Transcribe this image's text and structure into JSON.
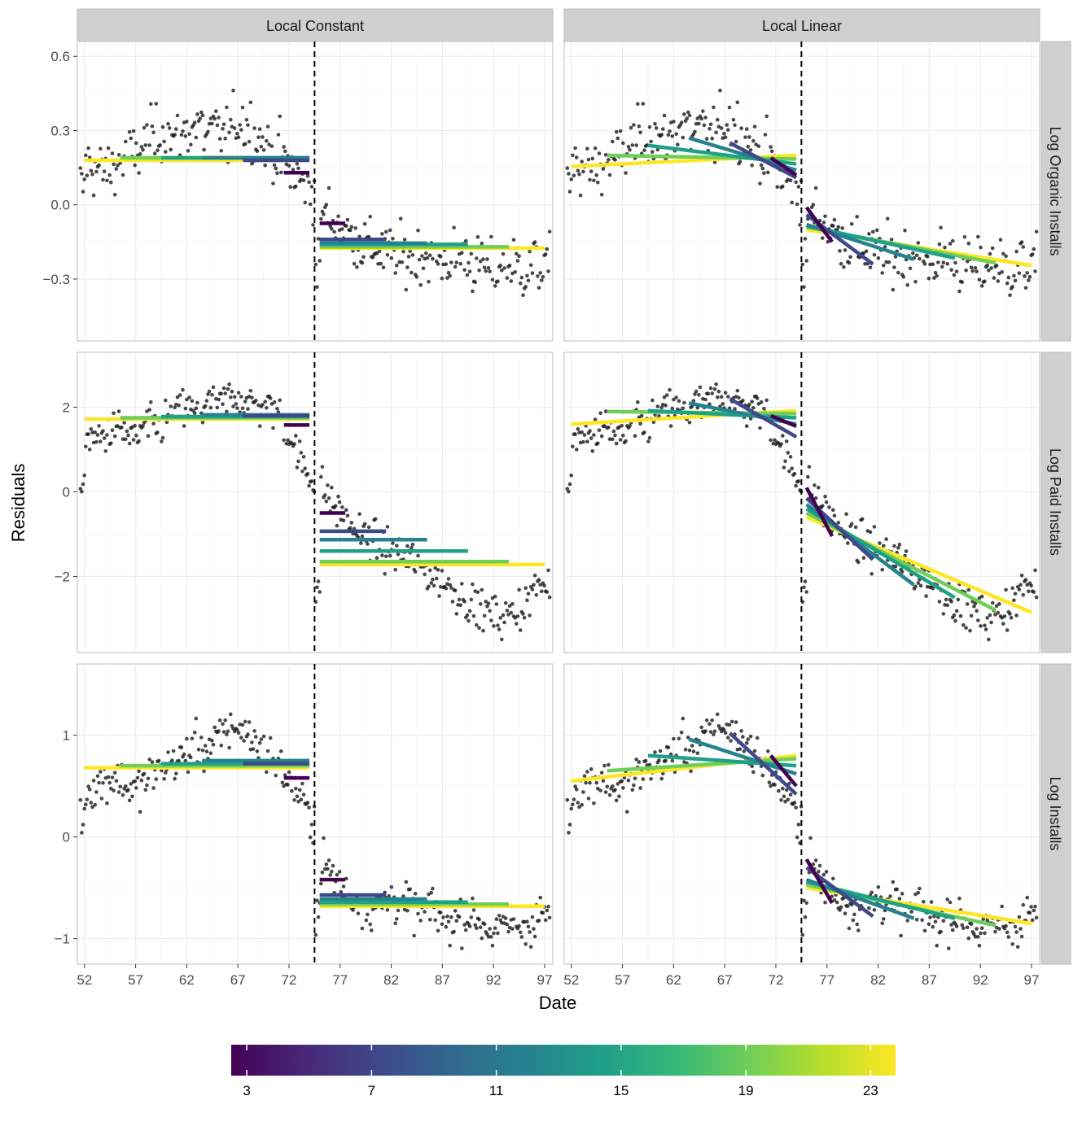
{
  "chart_data": {
    "type": "scatter",
    "xlabel": "Date",
    "ylabel": "Residuals",
    "columns": [
      "Local Constant",
      "Local Linear"
    ],
    "rows": [
      "Log Organic Installs",
      "Log Paid Installs",
      "Log Installs"
    ],
    "x_ticks": [
      52,
      57,
      62,
      67,
      72,
      77,
      82,
      87,
      92,
      97
    ],
    "xlim": [
      51.3,
      97.8
    ],
    "cutoff": 74.5,
    "colorbar": {
      "title": "",
      "ticks": [
        3,
        7,
        11,
        15,
        19,
        23
      ],
      "range": [
        2.5,
        23.8
      ],
      "stops": [
        "#440154",
        "#482878",
        "#3e4989",
        "#31688e",
        "#26828e",
        "#1f9e89",
        "#35b779",
        "#6ece58",
        "#b5de2b",
        "#fde725"
      ]
    },
    "bandwidth_colors": {
      "3": "#440154",
      "7": "#3e4989",
      "11": "#26828e",
      "15": "#1fa187",
      "19": "#6ece58",
      "23": "#fde725"
    },
    "panels": [
      {
        "row": "Log Organic Installs",
        "ylim": [
          -0.55,
          0.66
        ],
        "y_ticks": [
          -0.3,
          0.0,
          0.3,
          0.6
        ],
        "y_tick_labels": [
          "−0.3",
          "0.0",
          "0.3",
          "0.6"
        ],
        "pre_points": [
          [
            52,
            0.18
          ],
          [
            53,
            0.15
          ],
          [
            54,
            0.13
          ],
          [
            55,
            0.16
          ],
          [
            56,
            0.19
          ],
          [
            57,
            0.2
          ],
          [
            58,
            0.25
          ],
          [
            59,
            0.28
          ],
          [
            60,
            0.3
          ],
          [
            61,
            0.25
          ],
          [
            62,
            0.3
          ],
          [
            63,
            0.33
          ],
          [
            64,
            0.28
          ],
          [
            65,
            0.3
          ],
          [
            66,
            0.27
          ],
          [
            67,
            0.35
          ],
          [
            68,
            0.32
          ],
          [
            69,
            0.28
          ],
          [
            70,
            0.22
          ],
          [
            71,
            0.2
          ],
          [
            72,
            0.15
          ],
          [
            73,
            0.1
          ],
          [
            74,
            0.07
          ]
        ],
        "post_points": [
          [
            75,
            -0.02
          ],
          [
            76,
            -0.05
          ],
          [
            77,
            -0.08
          ],
          [
            78,
            -0.12
          ],
          [
            79,
            -0.15
          ],
          [
            80,
            -0.17
          ],
          [
            81,
            -0.19
          ],
          [
            82,
            -0.2
          ],
          [
            83,
            -0.22
          ],
          [
            84,
            -0.21
          ],
          [
            85,
            -0.2
          ],
          [
            86,
            -0.22
          ],
          [
            87,
            -0.23
          ],
          [
            88,
            -0.22
          ],
          [
            89,
            -0.2
          ],
          [
            90,
            -0.24
          ],
          [
            91,
            -0.25
          ],
          [
            92,
            -0.27
          ],
          [
            93,
            -0.23
          ],
          [
            94,
            -0.25
          ],
          [
            95,
            -0.27
          ],
          [
            96,
            -0.24
          ],
          [
            97,
            -0.26
          ]
        ],
        "spread": 0.1,
        "constant_fits": [
          {
            "bandwidth": 23,
            "pre": 0.18,
            "post": -0.175
          },
          {
            "bandwidth": 19,
            "pre": 0.19,
            "post": -0.17
          },
          {
            "bandwidth": 15,
            "pre": 0.19,
            "post": -0.16
          },
          {
            "bandwidth": 11,
            "pre": 0.19,
            "post": -0.155
          },
          {
            "bandwidth": 7,
            "pre": 0.18,
            "post": -0.14
          },
          {
            "bandwidth": 3,
            "pre": 0.13,
            "post": -0.075
          }
        ],
        "linear_fits": [
          {
            "bandwidth": 23,
            "pre_start": 0.155,
            "pre_end": 0.2,
            "post_start": -0.1,
            "post_end": -0.245
          },
          {
            "bandwidth": 19,
            "pre_start": 0.2,
            "pre_end": 0.185,
            "post_start": -0.09,
            "post_end": -0.235
          },
          {
            "bandwidth": 15,
            "pre_start": 0.24,
            "pre_end": 0.165,
            "post_start": -0.085,
            "post_end": -0.215
          },
          {
            "bandwidth": 11,
            "pre_start": 0.27,
            "pre_end": 0.14,
            "post_start": -0.08,
            "post_end": -0.22
          },
          {
            "bandwidth": 7,
            "pre_start": 0.25,
            "pre_end": 0.11,
            "post_start": -0.04,
            "post_end": -0.24
          },
          {
            "bandwidth": 3,
            "pre_start": 0.19,
            "pre_end": 0.12,
            "post_start": -0.01,
            "post_end": -0.15
          }
        ]
      },
      {
        "row": "Log Paid Installs",
        "ylim": [
          -3.8,
          3.3
        ],
        "y_ticks": [
          -2,
          0,
          2
        ],
        "y_tick_labels": [
          "−2",
          "0",
          "2"
        ],
        "pre_points": [
          [
            52,
            1.3
          ],
          [
            53,
            1.2
          ],
          [
            54,
            1.35
          ],
          [
            55,
            1.5
          ],
          [
            56,
            1.4
          ],
          [
            57,
            1.2
          ],
          [
            58,
            1.6
          ],
          [
            59,
            1.5
          ],
          [
            60,
            1.7
          ],
          [
            61,
            1.9
          ],
          [
            62,
            2.0
          ],
          [
            63,
            1.8
          ],
          [
            64,
            2.1
          ],
          [
            65,
            2.0
          ],
          [
            66,
            2.2
          ],
          [
            67,
            2.3
          ],
          [
            68,
            2.1
          ],
          [
            69,
            2.0
          ],
          [
            70,
            2.0
          ],
          [
            71,
            1.9
          ],
          [
            72,
            1.4
          ],
          [
            73,
            0.8
          ],
          [
            74,
            0.3
          ]
        ],
        "post_points": [
          [
            75,
            0.2
          ],
          [
            76,
            -0.2
          ],
          [
            77,
            -0.5
          ],
          [
            78,
            -0.8
          ],
          [
            79,
            -1.0
          ],
          [
            80,
            -1.2
          ],
          [
            81,
            -1.3
          ],
          [
            82,
            -1.4
          ],
          [
            83,
            -1.5
          ],
          [
            84,
            -1.6
          ],
          [
            85,
            -1.8
          ],
          [
            86,
            -2.0
          ],
          [
            87,
            -2.1
          ],
          [
            88,
            -2.3
          ],
          [
            89,
            -2.5
          ],
          [
            90,
            -2.7
          ],
          [
            91,
            -2.8
          ],
          [
            92,
            -2.9
          ],
          [
            93,
            -3.0
          ],
          [
            94,
            -2.8
          ],
          [
            95,
            -2.7
          ],
          [
            96,
            -2.3
          ],
          [
            97,
            -2.2
          ]
        ],
        "spread": 0.4,
        "constant_fits": [
          {
            "bandwidth": 23,
            "pre": 1.72,
            "post": -1.72
          },
          {
            "bandwidth": 19,
            "pre": 1.75,
            "post": -1.65
          },
          {
            "bandwidth": 15,
            "pre": 1.78,
            "post": -1.4
          },
          {
            "bandwidth": 11,
            "pre": 1.82,
            "post": -1.13
          },
          {
            "bandwidth": 7,
            "pre": 1.8,
            "post": -0.93
          },
          {
            "bandwidth": 3,
            "pre": 1.58,
            "post": -0.5
          }
        ],
        "linear_fits": [
          {
            "bandwidth": 23,
            "pre_start": 1.6,
            "pre_end": 1.92,
            "post_start": -0.6,
            "post_end": -2.85
          },
          {
            "bandwidth": 19,
            "pre_start": 1.9,
            "pre_end": 1.85,
            "post_start": -0.5,
            "post_end": -2.8
          },
          {
            "bandwidth": 15,
            "pre_start": 1.92,
            "pre_end": 1.75,
            "post_start": -0.4,
            "post_end": -2.5
          },
          {
            "bandwidth": 11,
            "pre_start": 2.1,
            "pre_end": 1.6,
            "post_start": -0.3,
            "post_end": -2.2
          },
          {
            "bandwidth": 7,
            "pre_start": 2.2,
            "pre_end": 1.3,
            "post_start": -0.15,
            "post_end": -1.6
          },
          {
            "bandwidth": 3,
            "pre_start": 1.8,
            "pre_end": 1.55,
            "post_start": 0.1,
            "post_end": -1.05
          }
        ]
      },
      {
        "row": "Log Installs",
        "ylim": [
          -1.25,
          1.7
        ],
        "y_ticks": [
          -1,
          0,
          1
        ],
        "y_tick_labels": [
          "−1",
          "0",
          "1"
        ],
        "pre_points": [
          [
            52,
            0.45
          ],
          [
            53,
            0.5
          ],
          [
            54,
            0.55
          ],
          [
            55,
            0.6
          ],
          [
            56,
            0.5
          ],
          [
            57,
            0.45
          ],
          [
            58,
            0.55
          ],
          [
            59,
            0.65
          ],
          [
            60,
            0.7
          ],
          [
            61,
            0.75
          ],
          [
            62,
            0.8
          ],
          [
            63,
            0.9
          ],
          [
            64,
            0.85
          ],
          [
            65,
            0.95
          ],
          [
            66,
            1.05
          ],
          [
            67,
            1.1
          ],
          [
            68,
            1.0
          ],
          [
            69,
            0.9
          ],
          [
            70,
            0.8
          ],
          [
            71,
            0.7
          ],
          [
            72,
            0.55
          ],
          [
            73,
            0.4
          ],
          [
            74,
            0.2
          ]
        ],
        "post_points": [
          [
            75,
            -0.2
          ],
          [
            76,
            -0.35
          ],
          [
            77,
            -0.5
          ],
          [
            78,
            -0.6
          ],
          [
            79,
            -0.65
          ],
          [
            80,
            -0.7
          ],
          [
            81,
            -0.65
          ],
          [
            82,
            -0.6
          ],
          [
            83,
            -0.65
          ],
          [
            84,
            -0.7
          ],
          [
            85,
            -0.75
          ],
          [
            86,
            -0.7
          ],
          [
            87,
            -0.8
          ],
          [
            88,
            -0.85
          ],
          [
            89,
            -0.75
          ],
          [
            90,
            -0.8
          ],
          [
            91,
            -0.85
          ],
          [
            92,
            -0.95
          ],
          [
            93,
            -0.9
          ],
          [
            94,
            -0.85
          ],
          [
            95,
            -0.9
          ],
          [
            96,
            -0.8
          ],
          [
            97,
            -0.75
          ]
        ],
        "spread": 0.18,
        "constant_fits": [
          {
            "bandwidth": 23,
            "pre": 0.68,
            "post": -0.68
          },
          {
            "bandwidth": 19,
            "pre": 0.7,
            "post": -0.66
          },
          {
            "bandwidth": 15,
            "pre": 0.72,
            "post": -0.64
          },
          {
            "bandwidth": 11,
            "pre": 0.75,
            "post": -0.61
          },
          {
            "bandwidth": 7,
            "pre": 0.72,
            "post": -0.57
          },
          {
            "bandwidth": 3,
            "pre": 0.58,
            "post": -0.42
          }
        ],
        "linear_fits": [
          {
            "bandwidth": 23,
            "pre_start": 0.55,
            "pre_end": 0.8,
            "post_start": -0.5,
            "post_end": -0.85
          },
          {
            "bandwidth": 19,
            "pre_start": 0.65,
            "pre_end": 0.77,
            "post_start": -0.47,
            "post_end": -0.87
          },
          {
            "bandwidth": 15,
            "pre_start": 0.8,
            "pre_end": 0.7,
            "post_start": -0.44,
            "post_end": -0.8
          },
          {
            "bandwidth": 11,
            "pre_start": 0.96,
            "pre_end": 0.62,
            "post_start": -0.42,
            "post_end": -0.8
          },
          {
            "bandwidth": 7,
            "pre_start": 1.02,
            "pre_end": 0.42,
            "post_start": -0.3,
            "post_end": -0.78
          },
          {
            "bandwidth": 3,
            "pre_start": 0.8,
            "pre_end": 0.5,
            "post_start": -0.22,
            "post_end": -0.65
          }
        ]
      }
    ]
  }
}
